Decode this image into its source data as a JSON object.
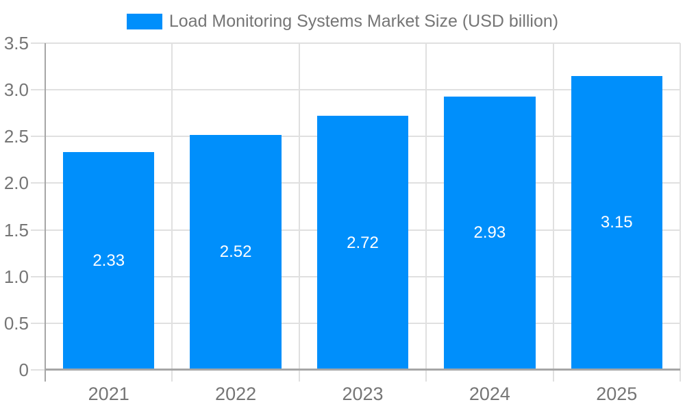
{
  "legend": {
    "label": "Load Monitoring Systems Market Size (USD billion)"
  },
  "colors": {
    "bar": "#008FFB",
    "grid": "#e0e0e0",
    "axis": "#a6a6a6",
    "text": "#757575",
    "bar_label": "#ffffff",
    "background": "#ffffff"
  },
  "chart_data": {
    "type": "bar",
    "title": "Load Monitoring Systems Market Size (USD billion)",
    "categories": [
      "2021",
      "2022",
      "2023",
      "2024",
      "2025"
    ],
    "values": [
      2.33,
      2.52,
      2.72,
      2.93,
      3.15
    ],
    "value_labels": [
      "2.33",
      "2.52",
      "2.72",
      "2.93",
      "3.15"
    ],
    "xlabel": "",
    "ylabel": "",
    "ylim": [
      0,
      3.5
    ],
    "ytick_labels": [
      "0",
      "0.5",
      "1.0",
      "1.5",
      "2.0",
      "2.5",
      "3.0",
      "3.5"
    ],
    "grid": true,
    "legend_position": "top"
  }
}
